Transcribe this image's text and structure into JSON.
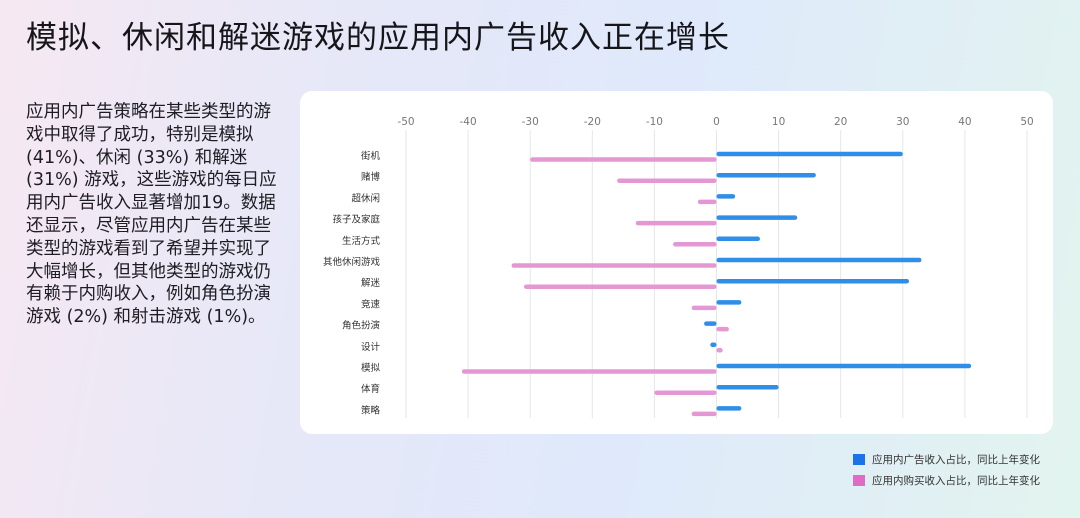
{
  "header": {
    "title": "模拟、休闲和解迷游戏的应用内广告收入正在增长"
  },
  "description": "应用内广告策略在某些类型的游戏中取得了成功，特别是模拟 (41%)、休闲 (33%) 和解迷 (31%) 游戏，这些游戏的每日应用内广告收入显著增加19。数据还显示，尽管应用内广告在某些类型的游戏看到了希望并实现了大幅增长，但其他类型的游戏仍有赖于内购收入，例如角色扮演游戏 (2%) 和射击游戏 (1%)。",
  "colors": {
    "ad": "#2e8ee8",
    "iap": "#e597d4",
    "ad_legend": "#1a73e8",
    "iap_legend": "#e06bc4",
    "grid": "#e4e6ea"
  },
  "chart_data": {
    "type": "bar",
    "orientation": "horizontal",
    "title": "",
    "xlabel": "",
    "ylabel": "",
    "xlim": [
      -50,
      50
    ],
    "xticks": [
      "-50",
      "-40",
      "-30",
      "-20",
      "-10",
      "0",
      "10",
      "20",
      "30",
      "40",
      "50"
    ],
    "grid": "vertical",
    "legend_position": "bottom-right",
    "categories": [
      "街机",
      "赌博",
      "超休闲",
      "孩子及家庭",
      "生活方式",
      "其他休闲游戏",
      "解迷",
      "竞速",
      "角色扮演",
      "设计",
      "模拟",
      "体育",
      "策略"
    ],
    "series": [
      {
        "name": "应用内广告收入占比，同比上年变化",
        "values": [
          30,
          16,
          3,
          13,
          7,
          33,
          31,
          4,
          -2,
          -1,
          41,
          10,
          4
        ]
      },
      {
        "name": "应用内购买收入占比，同比上年变化",
        "values": [
          -30,
          -16,
          -3,
          -13,
          -7,
          -33,
          -31,
          -4,
          2,
          1,
          -41,
          -10,
          -4
        ]
      }
    ]
  }
}
